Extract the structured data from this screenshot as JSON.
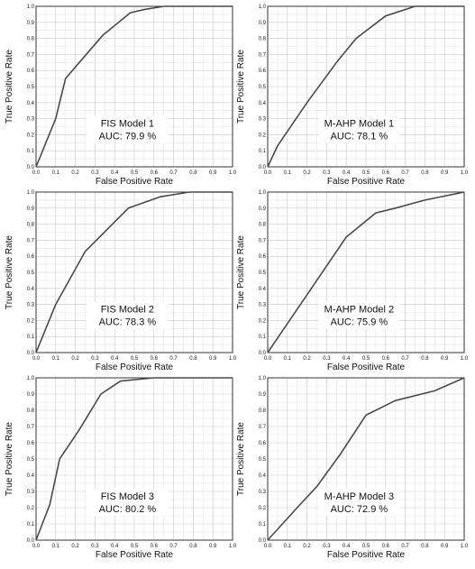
{
  "chart_data": [
    {
      "type": "line",
      "title": "",
      "xlabel": "False Positive Rate",
      "ylabel": "True Positive Rate",
      "xlim": [
        0,
        1
      ],
      "ylim": [
        0,
        1
      ],
      "ticks": [
        "0.0",
        "0.1",
        "0.2",
        "0.3",
        "0.4",
        "0.5",
        "0.6",
        "0.7",
        "0.8",
        "0.9",
        "1.0"
      ],
      "grid": true,
      "annotation": [
        "FIS Model 1",
        "AUC: 79.9 %"
      ],
      "series": [
        {
          "x": [
            0,
            0.04,
            0.1,
            0.15,
            0.22,
            0.34,
            0.48,
            0.55,
            0.65,
            1.0
          ],
          "y": [
            0,
            0.12,
            0.3,
            0.55,
            0.65,
            0.82,
            0.96,
            0.98,
            1.0,
            1.0
          ]
        }
      ]
    },
    {
      "type": "line",
      "title": "",
      "xlabel": "False Positive Rate",
      "ylabel": "True Positive Rate",
      "xlim": [
        0,
        1
      ],
      "ylim": [
        0,
        1
      ],
      "ticks": [
        "0.0",
        "0.1",
        "0.2",
        "0.3",
        "0.4",
        "0.5",
        "0.6",
        "0.7",
        "0.8",
        "0.9",
        "1.0"
      ],
      "grid": true,
      "annotation": [
        "M-AHP Model 1",
        "AUC: 78.1 %"
      ],
      "series": [
        {
          "x": [
            0,
            0.05,
            0.2,
            0.35,
            0.45,
            0.6,
            0.75,
            1.0
          ],
          "y": [
            0,
            0.13,
            0.4,
            0.65,
            0.8,
            0.94,
            1.0,
            1.0
          ]
        }
      ]
    },
    {
      "type": "line",
      "title": "",
      "xlabel": "False Positive Rate",
      "ylabel": "True Positive Rate",
      "xlim": [
        0,
        1
      ],
      "ylim": [
        0,
        1
      ],
      "ticks": [
        "0.0",
        "0.1",
        "0.2",
        "0.3",
        "0.4",
        "0.5",
        "0.6",
        "0.7",
        "0.8",
        "0.9",
        "1.0"
      ],
      "grid": true,
      "annotation": [
        "FIS Model 2",
        "AUC: 78.3 %"
      ],
      "series": [
        {
          "x": [
            0,
            0.1,
            0.25,
            0.47,
            0.63,
            0.78,
            1.0
          ],
          "y": [
            0,
            0.3,
            0.63,
            0.9,
            0.97,
            1.0,
            1.0
          ]
        }
      ]
    },
    {
      "type": "line",
      "title": "",
      "xlabel": "False Positive Rate",
      "ylabel": "True Positive Rate",
      "xlim": [
        0,
        1
      ],
      "ylim": [
        0,
        1
      ],
      "ticks": [
        "0.0",
        "0.1",
        "0.2",
        "0.3",
        "0.4",
        "0.5",
        "0.6",
        "0.7",
        "0.8",
        "0.9",
        "1.0"
      ],
      "grid": true,
      "annotation": [
        "M-AHP Model 2",
        "AUC: 75.9 %"
      ],
      "series": [
        {
          "x": [
            0,
            0.2,
            0.4,
            0.55,
            0.65,
            0.8,
            1.0
          ],
          "y": [
            0,
            0.36,
            0.72,
            0.87,
            0.9,
            0.95,
            1.0
          ]
        }
      ]
    },
    {
      "type": "line",
      "title": "",
      "xlabel": "False Positive Rate",
      "ylabel": "True Positive Rate",
      "xlim": [
        0,
        1
      ],
      "ylim": [
        0,
        1
      ],
      "ticks": [
        "0.0",
        "0.1",
        "0.2",
        "0.3",
        "0.4",
        "0.5",
        "0.6",
        "0.7",
        "0.8",
        "0.9",
        "1.0"
      ],
      "grid": true,
      "annotation": [
        "FIS Model 3",
        "AUC: 80.2 %"
      ],
      "series": [
        {
          "x": [
            0,
            0.07,
            0.12,
            0.22,
            0.33,
            0.43,
            0.6,
            1.0
          ],
          "y": [
            0,
            0.22,
            0.5,
            0.68,
            0.9,
            0.98,
            1.0,
            1.0
          ]
        }
      ]
    },
    {
      "type": "line",
      "title": "",
      "xlabel": "False Positive Rate",
      "ylabel": "True Positive Rate",
      "xlim": [
        0,
        1
      ],
      "ylim": [
        0,
        1
      ],
      "ticks": [
        "0.0",
        "0.1",
        "0.2",
        "0.3",
        "0.4",
        "0.5",
        "0.6",
        "0.7",
        "0.8",
        "0.9",
        "1.0"
      ],
      "grid": true,
      "annotation": [
        "M-AHP Model 3",
        "AUC: 72.9 %"
      ],
      "series": [
        {
          "x": [
            0,
            0.15,
            0.25,
            0.37,
            0.5,
            0.65,
            0.85,
            1.0
          ],
          "y": [
            0,
            0.2,
            0.33,
            0.53,
            0.77,
            0.86,
            0.92,
            1.0
          ]
        }
      ]
    }
  ]
}
